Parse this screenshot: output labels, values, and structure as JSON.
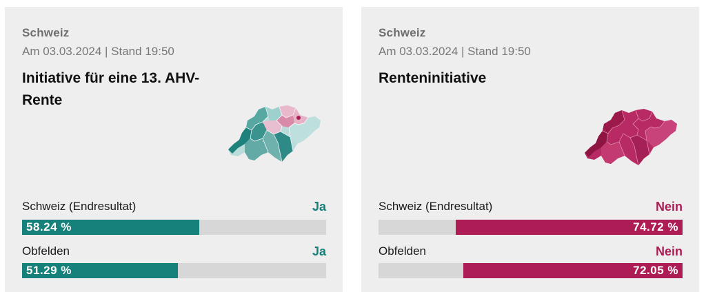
{
  "cards": [
    {
      "region": "Schweiz",
      "date": "Am 03.03.2024 | Stand 19:50",
      "title": "Initiative für eine 13. AHV-Rente",
      "rows": [
        {
          "label": "Schweiz (Endresultat)",
          "result": "Ja",
          "percent_text": "58.24 %",
          "percent": 58.24,
          "side": "left"
        },
        {
          "label": "Obfelden",
          "result": "Ja",
          "percent_text": "51.29 %",
          "percent": 51.29,
          "side": "left"
        }
      ],
      "map_icon": "switzerland-canton-map",
      "colors": {
        "yes": "#16807a",
        "no": "#ad1c54"
      }
    },
    {
      "region": "Schweiz",
      "date": "Am 03.03.2024 | Stand 19:50",
      "title": "Renteninitiative",
      "rows": [
        {
          "label": "Schweiz (Endresultat)",
          "result": "Nein",
          "percent_text": "74.72 %",
          "percent": 74.72,
          "side": "right"
        },
        {
          "label": "Obfelden",
          "result": "Nein",
          "percent_text": "72.05 %",
          "percent": 72.05,
          "side": "right"
        }
      ],
      "map_icon": "switzerland-canton-map",
      "colors": {
        "yes": "#16807a",
        "no": "#ad1c54"
      }
    }
  ]
}
